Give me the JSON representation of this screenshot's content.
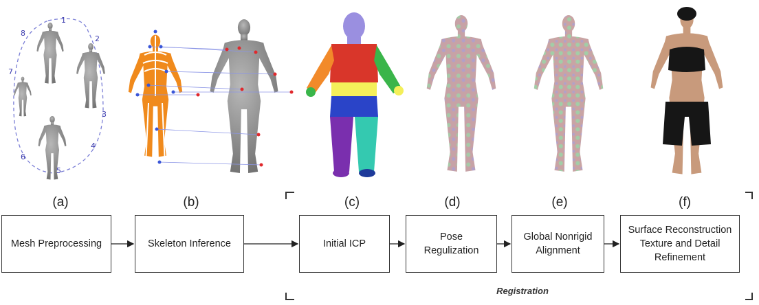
{
  "panels": [
    {
      "id": "a",
      "label": "(a)"
    },
    {
      "id": "b",
      "label": "(b)"
    },
    {
      "id": "c",
      "label": "(c)"
    },
    {
      "id": "d",
      "label": "(d)"
    },
    {
      "id": "e",
      "label": "(e)"
    },
    {
      "id": "f",
      "label": "(f)"
    }
  ],
  "view_numbers": [
    "1",
    "2",
    "3",
    "4",
    "5",
    "6",
    "7",
    "8"
  ],
  "pipeline": [
    {
      "id": "mesh-preprocessing",
      "lines": [
        "Mesh Preprocessing"
      ]
    },
    {
      "id": "skeleton-inference",
      "lines": [
        "Skeleton Inference"
      ]
    },
    {
      "id": "initial-icp",
      "lines": [
        "Initial ICP"
      ]
    },
    {
      "id": "pose-regulization",
      "lines": [
        "Pose",
        "Regulization"
      ]
    },
    {
      "id": "global-nonrigid-alignment",
      "lines": [
        "Global Nonrigid",
        "Alignment"
      ]
    },
    {
      "id": "surface-reconstruction",
      "lines": [
        "Surface Reconstruction",
        "Texture and Detail",
        "Refinement"
      ]
    }
  ],
  "group_label": "Registration",
  "colors": {
    "mesh_gray": "#8a8a8a",
    "skeleton_orange": "#f08a1c",
    "marker_blue": "#3a56d8",
    "marker_red": "#e0282c",
    "dashed_path": "#7b7fd6",
    "rainbow": [
      "#9a8fe0",
      "#d9362a",
      "#f2b62a",
      "#f4ef5a",
      "#3ab54a",
      "#2a44c8",
      "#7a2fae",
      "#34c9b0"
    ],
    "overlay_pink": "#c7a2a6",
    "overlay_green": "#9fd2a8",
    "skin": "#c89a7c",
    "clothing": "#161616"
  }
}
